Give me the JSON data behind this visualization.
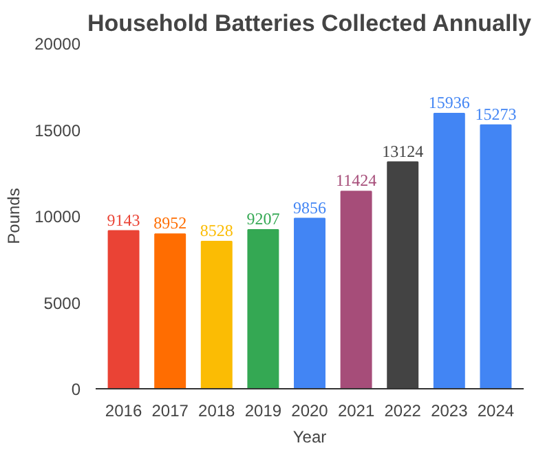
{
  "chart_data": {
    "type": "bar",
    "title": "Household Batteries Collected Annually",
    "xlabel": "Year",
    "ylabel": "Pounds",
    "categories": [
      "2016",
      "2017",
      "2018",
      "2019",
      "2020",
      "2021",
      "2022",
      "2023",
      "2024"
    ],
    "values": [
      9143,
      8952,
      8528,
      9207,
      9856,
      11424,
      13124,
      15936,
      15273
    ],
    "colors": [
      "#ea4335",
      "#ff6d01",
      "#fbbc04",
      "#34a853",
      "#4285f4",
      "#a64d79",
      "#434343",
      "#4285f4",
      "#4285f4"
    ],
    "ylim": [
      0,
      20000
    ],
    "yticks": [
      0,
      5000,
      10000,
      15000,
      20000
    ],
    "data_labels": true,
    "grid": false
  }
}
